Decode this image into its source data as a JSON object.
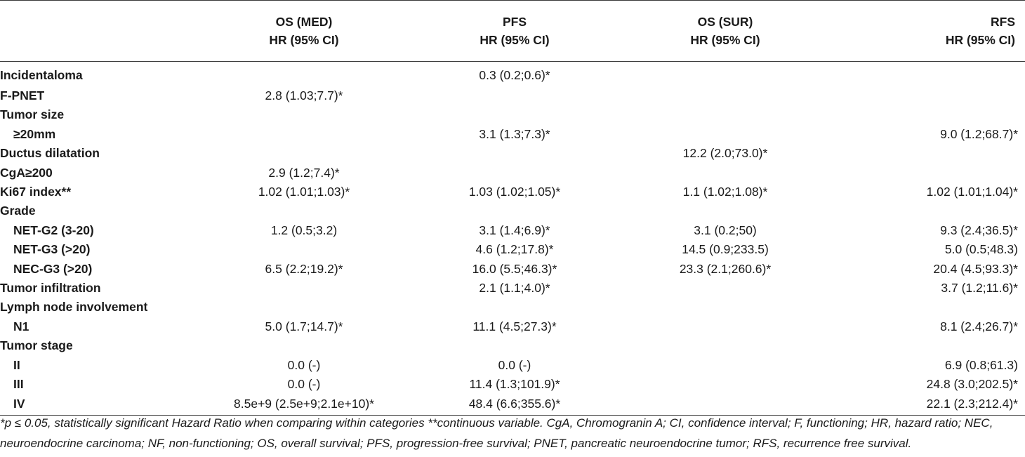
{
  "table": {
    "columns": [
      {
        "line1": "OS (MED)",
        "line2": "HR (95% CI)"
      },
      {
        "line1": "PFS",
        "line2": "HR (95% CI)"
      },
      {
        "line1": "OS (SUR)",
        "line2": "HR (95% CI)"
      },
      {
        "line1": "RFS",
        "line2": "HR (95% CI)"
      }
    ],
    "rows": [
      {
        "label": "Incidentaloma",
        "indent": false,
        "values": [
          "",
          "0.3 (0.2;0.6)*",
          "",
          ""
        ]
      },
      {
        "label": "F-PNET",
        "indent": false,
        "values": [
          "2.8 (1.03;7.7)*",
          "",
          "",
          ""
        ]
      },
      {
        "label": "Tumor size",
        "indent": false,
        "values": [
          "",
          "",
          "",
          ""
        ]
      },
      {
        "label": "≥20mm",
        "indent": true,
        "values": [
          "",
          "3.1 (1.3;7.3)*",
          "",
          "9.0 (1.2;68.7)*"
        ]
      },
      {
        "label": "Ductus dilatation",
        "indent": false,
        "values": [
          "",
          "",
          "12.2 (2.0;73.0)*",
          ""
        ]
      },
      {
        "label": "CgA≥200",
        "indent": false,
        "values": [
          "2.9 (1.2;7.4)*",
          "",
          "",
          ""
        ]
      },
      {
        "label": "Ki67 index**",
        "indent": false,
        "values": [
          "1.02 (1.01;1.03)*",
          "1.03 (1.02;1.05)*",
          "1.1 (1.02;1.08)*",
          "1.02 (1.01;1.04)*"
        ]
      },
      {
        "label": "Grade",
        "indent": false,
        "values": [
          "",
          "",
          "",
          ""
        ]
      },
      {
        "label": "NET-G2 (3-20)",
        "indent": true,
        "values": [
          "1.2 (0.5;3.2)",
          "3.1 (1.4;6.9)*",
          "3.1 (0.2;50)",
          "9.3 (2.4;36.5)*"
        ]
      },
      {
        "label": "NET-G3 (>20)",
        "indent": true,
        "values": [
          "",
          "4.6 (1.2;17.8)*",
          "14.5 (0.9;233.5)",
          "5.0 (0.5;48.3)"
        ]
      },
      {
        "label": "NEC-G3 (>20)",
        "indent": true,
        "values": [
          "6.5 (2.2;19.2)*",
          "16.0 (5.5;46.3)*",
          "23.3 (2.1;260.6)*",
          "20.4 (4.5;93.3)*"
        ]
      },
      {
        "label": "Tumor infiltration",
        "indent": false,
        "values": [
          "",
          "2.1 (1.1;4.0)*",
          "",
          "3.7 (1.2;11.6)*"
        ]
      },
      {
        "label": "Lymph node involvement",
        "indent": false,
        "values": [
          "",
          "",
          "",
          ""
        ]
      },
      {
        "label": "N1",
        "indent": true,
        "values": [
          "5.0 (1.7;14.7)*",
          "11.1 (4.5;27.3)*",
          "",
          "8.1 (2.4;26.7)*"
        ]
      },
      {
        "label": "Tumor stage",
        "indent": false,
        "values": [
          "",
          "",
          "",
          ""
        ]
      },
      {
        "label": "II",
        "indent": true,
        "values": [
          "0.0 (-)",
          "0.0 (-)",
          "",
          "6.9 (0.8;61.3)"
        ]
      },
      {
        "label": "III",
        "indent": true,
        "values": [
          "0.0 (-)",
          "11.4 (1.3;101.9)*",
          "",
          "24.8 (3.0;202.5)*"
        ]
      },
      {
        "label": "IV",
        "indent": true,
        "values": [
          "8.5e+9 (2.5e+9;2.1e+10)*",
          "48.4 (6.6;355.6)*",
          "",
          "22.1 (2.3;212.4)*"
        ]
      }
    ]
  },
  "footnote": "*p ≤ 0.05, statistically significant Hazard Ratio when comparing within categories **continuous variable. CgA, Chromogranin A; CI, confidence interval; F, functioning; HR, hazard ratio; NEC, neuroendocrine carcinoma; NF, non-functioning; OS, overall survival; PFS, progression-free survival; PNET, pancreatic neuroendocrine tumor; RFS, recurrence free survival."
}
